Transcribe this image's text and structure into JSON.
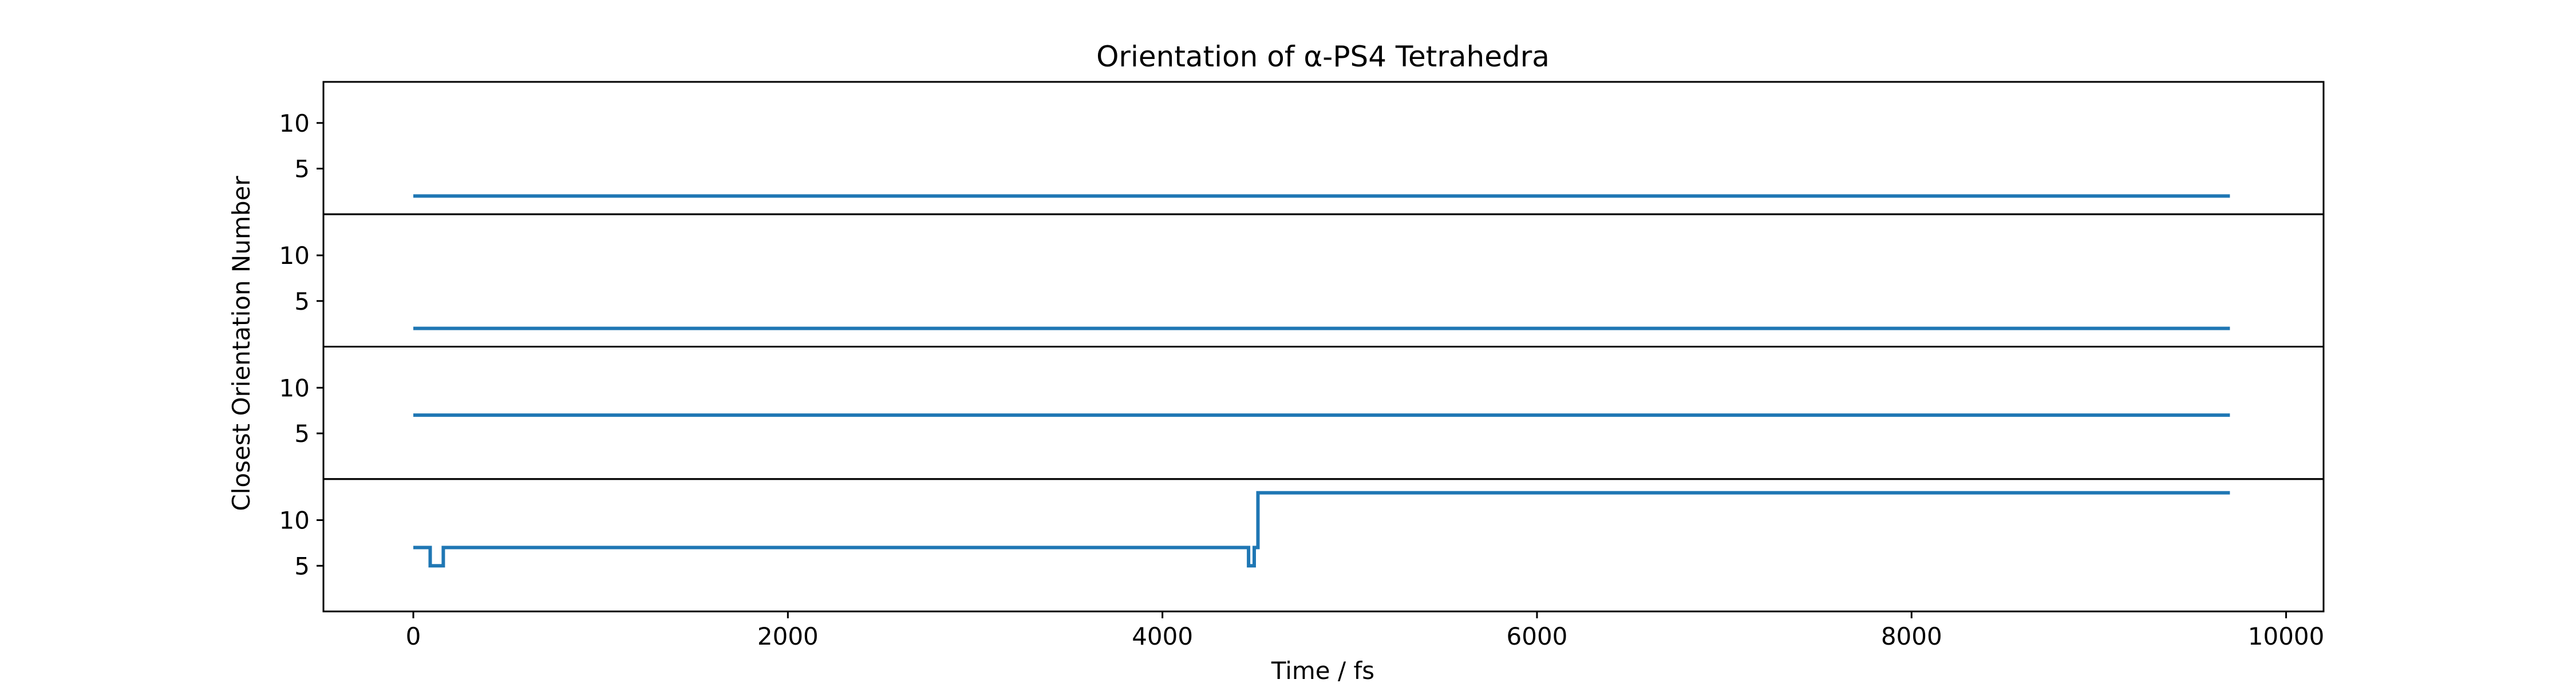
{
  "chart_data": {
    "type": "line",
    "title": "Orientation of α-PS4 Tetrahedra",
    "xlabel": "Time / fs",
    "ylabel": "Closest Orientation Number",
    "xlim": [
      -480,
      10200
    ],
    "ylim": [
      0,
      14.5
    ],
    "x_ticks": [
      0,
      2000,
      4000,
      6000,
      8000,
      10000
    ],
    "x_tick_labels": [
      "0",
      "2000",
      "4000",
      "6000",
      "8000",
      "10000"
    ],
    "y_ticks": [
      5,
      10
    ],
    "y_tick_labels": [
      "5",
      "10"
    ],
    "grid": false,
    "legend": "none",
    "line_color": "#1f77b4",
    "panels": [
      {
        "series": [
          {
            "points": [
              [
                0,
                2
              ],
              [
                9700,
                2
              ]
            ]
          }
        ]
      },
      {
        "series": [
          {
            "points": [
              [
                0,
                2
              ],
              [
                9700,
                2
              ]
            ]
          }
        ]
      },
      {
        "series": [
          {
            "points": [
              [
                0,
                7
              ],
              [
                9700,
                7
              ]
            ]
          }
        ]
      },
      {
        "series": [
          {
            "points": [
              [
                0,
                7
              ],
              [
                90,
                7
              ],
              [
                90,
                5
              ],
              [
                160,
                5
              ],
              [
                160,
                7
              ],
              [
                4460,
                7
              ],
              [
                4460,
                5
              ],
              [
                4490,
                5
              ],
              [
                4490,
                7
              ],
              [
                4510,
                7
              ],
              [
                4510,
                13
              ],
              [
                9700,
                13
              ]
            ]
          }
        ]
      }
    ]
  }
}
